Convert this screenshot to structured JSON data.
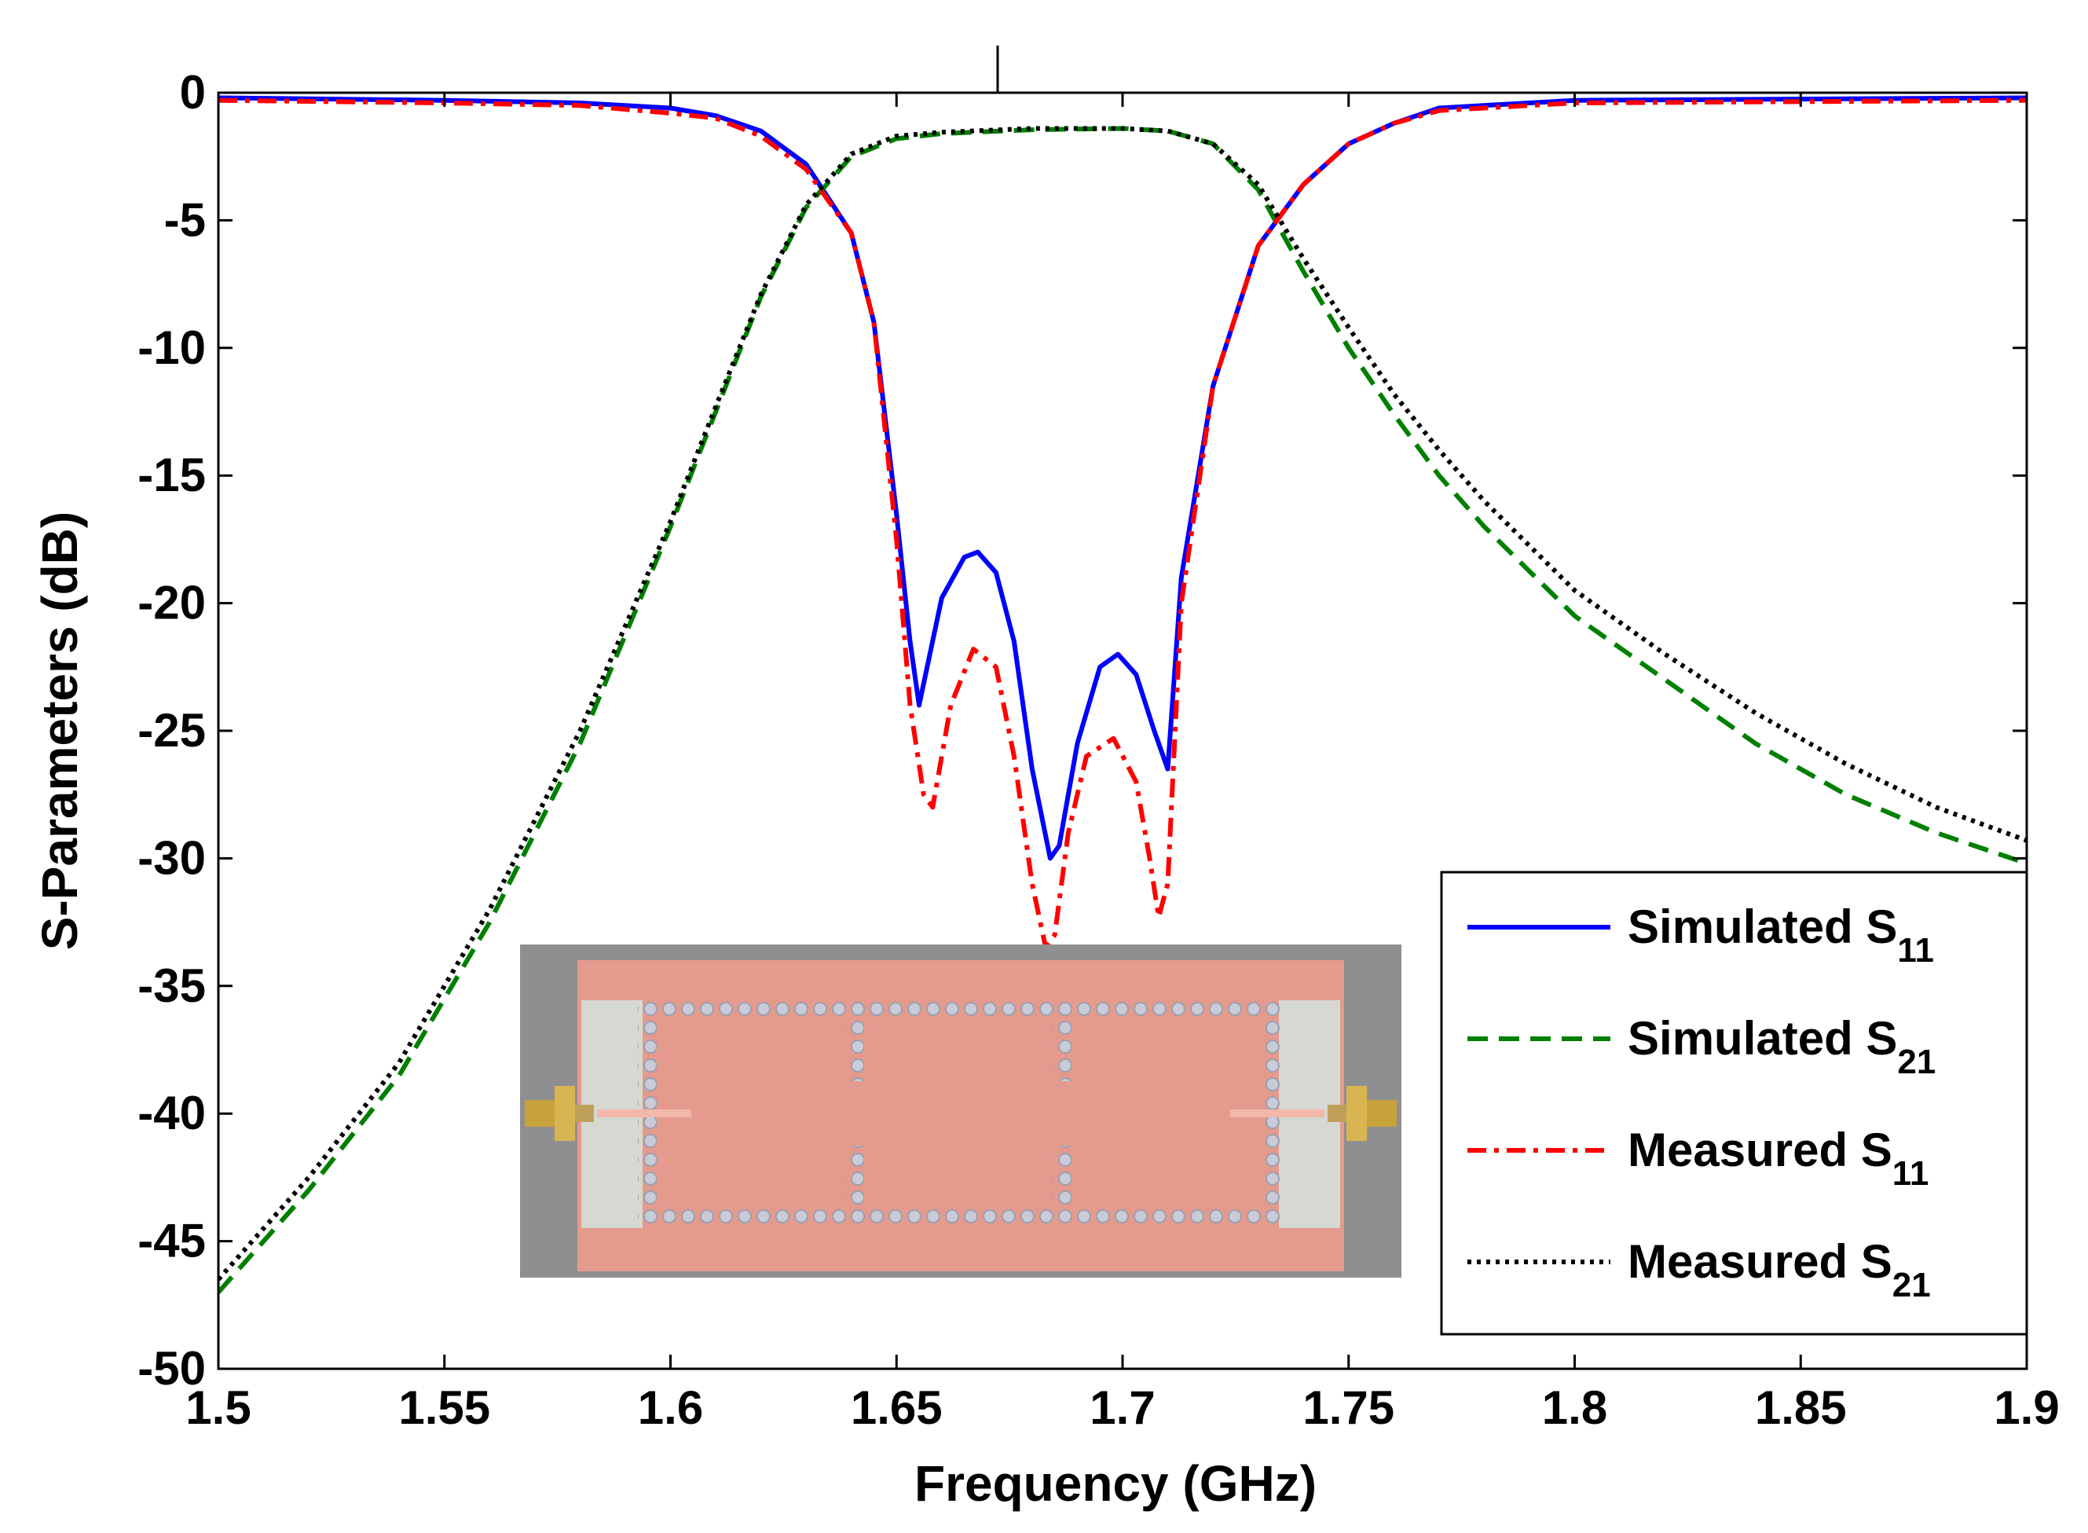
{
  "chart_data": {
    "type": "line",
    "title": "",
    "xlabel": "Frequency (GHz)",
    "ylabel": "S-Parameters (dB)",
    "xlim": [
      1.5,
      1.9
    ],
    "ylim": [
      -50,
      0
    ],
    "x_ticks": [
      1.5,
      1.55,
      1.6,
      1.65,
      1.7,
      1.75,
      1.8,
      1.85,
      1.9
    ],
    "x_tick_labels": [
      "1.5",
      "1.55",
      "1.6",
      "1.65",
      "1.7",
      "1.75",
      "1.8",
      "1.85",
      "1.9"
    ],
    "y_ticks": [
      0,
      -5,
      -10,
      -15,
      -20,
      -25,
      -30,
      -35,
      -40,
      -45,
      -50
    ],
    "y_tick_labels": [
      "0",
      "-5",
      "-10",
      "-15",
      "-20",
      "-25",
      "-30",
      "-35",
      "-40",
      "-45",
      "-50"
    ],
    "grid": false,
    "legend_position": "bottom-right",
    "series": [
      {
        "name": "Simulated S11",
        "label_main": "Simulated S",
        "label_sub": "11",
        "color": "#0000ff",
        "style": "solid",
        "x": [
          1.5,
          1.55,
          1.58,
          1.6,
          1.61,
          1.62,
          1.63,
          1.64,
          1.645,
          1.65,
          1.653,
          1.655,
          1.66,
          1.665,
          1.668,
          1.672,
          1.676,
          1.68,
          1.684,
          1.686,
          1.69,
          1.695,
          1.699,
          1.703,
          1.707,
          1.71,
          1.713,
          1.72,
          1.73,
          1.74,
          1.75,
          1.76,
          1.77,
          1.8,
          1.9
        ],
        "y": [
          -0.2,
          -0.3,
          -0.4,
          -0.6,
          -0.9,
          -1.5,
          -2.8,
          -5.5,
          -9.0,
          -16.5,
          -21.5,
          -24.0,
          -19.8,
          -18.2,
          -18.0,
          -18.8,
          -21.5,
          -26.5,
          -30.0,
          -29.5,
          -25.5,
          -22.5,
          -22.0,
          -22.8,
          -25.0,
          -26.5,
          -19.0,
          -11.5,
          -6.0,
          -3.6,
          -2.0,
          -1.2,
          -0.6,
          -0.3,
          -0.2
        ]
      },
      {
        "name": "Simulated S21",
        "label_main": "Simulated S",
        "label_sub": "21",
        "color": "#008000",
        "style": "dashed",
        "x": [
          1.5,
          1.52,
          1.54,
          1.56,
          1.58,
          1.6,
          1.61,
          1.62,
          1.63,
          1.64,
          1.65,
          1.66,
          1.68,
          1.7,
          1.71,
          1.72,
          1.73,
          1.74,
          1.75,
          1.76,
          1.77,
          1.78,
          1.8,
          1.82,
          1.84,
          1.86,
          1.88,
          1.9
        ],
        "y": [
          -47.0,
          -43.0,
          -38.5,
          -32.5,
          -25.5,
          -17.0,
          -12.5,
          -8.0,
          -4.5,
          -2.5,
          -1.8,
          -1.6,
          -1.45,
          -1.4,
          -1.5,
          -2.0,
          -3.8,
          -7.0,
          -10.0,
          -12.6,
          -15.0,
          -17.0,
          -20.5,
          -23.0,
          -25.5,
          -27.5,
          -29.0,
          -30.2
        ]
      },
      {
        "name": "Measured S11",
        "label_main": "Measured S",
        "label_sub": "11",
        "color": "#ff0000",
        "style": "dashdot",
        "x": [
          1.5,
          1.55,
          1.58,
          1.6,
          1.61,
          1.62,
          1.63,
          1.64,
          1.645,
          1.65,
          1.653,
          1.656,
          1.658,
          1.662,
          1.667,
          1.672,
          1.676,
          1.68,
          1.683,
          1.685,
          1.688,
          1.692,
          1.698,
          1.703,
          1.706,
          1.708,
          1.71,
          1.713,
          1.72,
          1.73,
          1.74,
          1.75,
          1.76,
          1.77,
          1.8,
          1.9
        ],
        "y": [
          -0.3,
          -0.4,
          -0.5,
          -0.8,
          -1.0,
          -1.7,
          -3.0,
          -5.5,
          -9.0,
          -17.5,
          -24.0,
          -27.5,
          -28.0,
          -24.0,
          -21.8,
          -22.5,
          -26.0,
          -31.0,
          -33.5,
          -33.0,
          -29.0,
          -26.0,
          -25.3,
          -27.0,
          -30.0,
          -32.3,
          -31.0,
          -20.0,
          -11.5,
          -6.0,
          -3.6,
          -2.0,
          -1.2,
          -0.7,
          -0.4,
          -0.3
        ]
      },
      {
        "name": "Measured S21",
        "label_main": "Measured S",
        "label_sub": "21",
        "color": "#000000",
        "style": "dotted",
        "x": [
          1.5,
          1.52,
          1.54,
          1.56,
          1.58,
          1.6,
          1.61,
          1.62,
          1.63,
          1.64,
          1.65,
          1.66,
          1.68,
          1.7,
          1.71,
          1.72,
          1.73,
          1.74,
          1.75,
          1.76,
          1.77,
          1.78,
          1.8,
          1.82,
          1.84,
          1.86,
          1.88,
          1.9
        ],
        "y": [
          -46.5,
          -42.5,
          -38.0,
          -32.0,
          -25.0,
          -16.8,
          -12.3,
          -7.9,
          -4.4,
          -2.4,
          -1.7,
          -1.55,
          -1.4,
          -1.4,
          -1.5,
          -2.0,
          -3.6,
          -6.5,
          -9.2,
          -11.8,
          -14.0,
          -16.0,
          -19.5,
          -22.0,
          -24.3,
          -26.3,
          -28.0,
          -29.3
        ]
      }
    ],
    "inset": {
      "type": "photo",
      "content": "fabricated filter prototype on copper-clad board with via rows and two SMA connectors"
    }
  }
}
